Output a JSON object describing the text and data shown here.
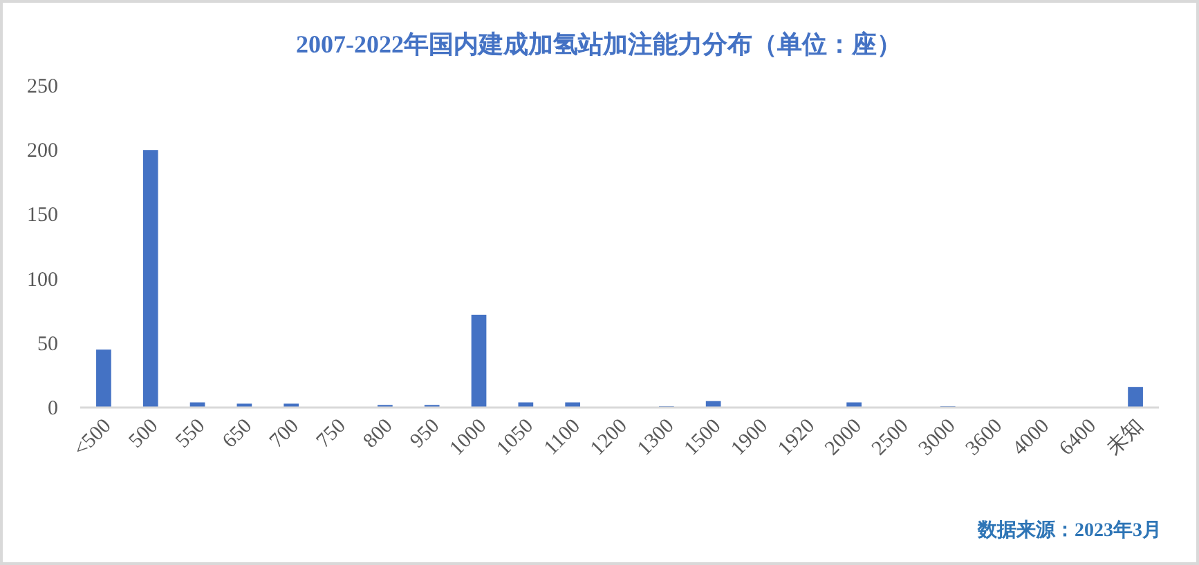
{
  "chart_data": {
    "type": "bar",
    "title": "2007-2022年国内建成加氢站加注能力分布（单位：座）",
    "categories": [
      "<500",
      "500",
      "550",
      "650",
      "700",
      "750",
      "800",
      "950",
      "1000",
      "1050",
      "1100",
      "1200",
      "1300",
      "1500",
      "1900",
      "1920",
      "2000",
      "2500",
      "3000",
      "3600",
      "4000",
      "6400",
      "未知"
    ],
    "values": [
      45,
      200,
      4,
      3,
      3,
      0,
      2,
      2,
      72,
      4,
      4,
      0,
      1,
      5,
      0,
      0,
      4,
      0,
      1,
      0,
      0,
      0,
      16
    ],
    "color": "#4472c4",
    "ylim": [
      0,
      250
    ],
    "yticks": [
      0,
      50,
      100,
      150,
      200,
      250
    ],
    "grid": false,
    "annotations": [
      "数据来源：2023年3月"
    ]
  }
}
